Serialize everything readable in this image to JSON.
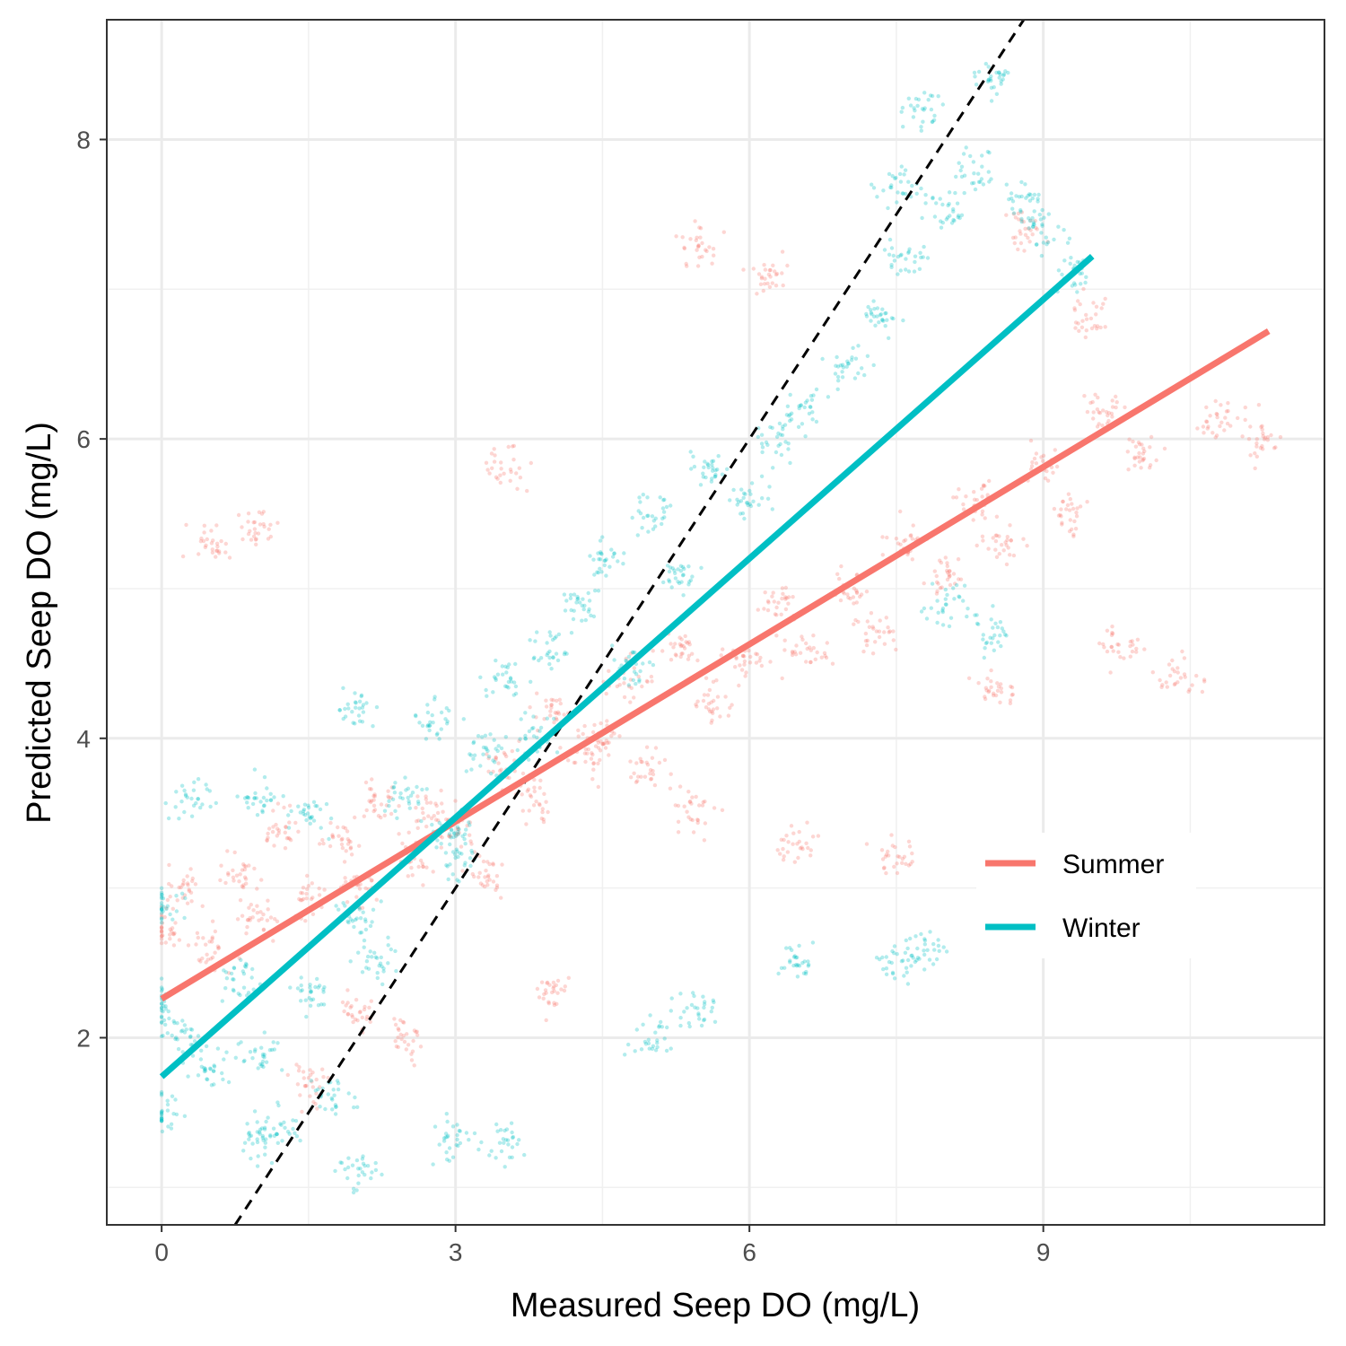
{
  "chart_data": {
    "type": "scatter",
    "xlabel": "Measured Seep DO (mg/L)",
    "ylabel": "Predicted Seep DO (mg/L)",
    "xlim": [
      -0.56,
      11.87
    ],
    "ylim": [
      0.75,
      8.8
    ],
    "x_ticks": [
      0,
      3,
      6,
      9
    ],
    "x_tick_labels": [
      "0",
      "3",
      "6",
      "9"
    ],
    "y_ticks": [
      2,
      4,
      6,
      8
    ],
    "y_tick_labels": [
      "2",
      "4",
      "6",
      "8"
    ],
    "grid": true,
    "legend_position": "inside-bottom-right",
    "series": [
      {
        "name": "Summer",
        "color": "#F8766D",
        "fit_line": {
          "x": [
            0,
            11.3
          ],
          "y": [
            2.26,
            6.72
          ]
        },
        "points_sample": [
          [
            0.0,
            2.7
          ],
          [
            0.2,
            3.0
          ],
          [
            0.5,
            2.6
          ],
          [
            0.8,
            3.1
          ],
          [
            1.0,
            2.8
          ],
          [
            1.2,
            3.4
          ],
          [
            1.5,
            2.9
          ],
          [
            1.8,
            3.3
          ],
          [
            2.0,
            3.0
          ],
          [
            2.2,
            3.6
          ],
          [
            2.5,
            3.2
          ],
          [
            2.8,
            3.5
          ],
          [
            3.0,
            3.4
          ],
          [
            3.3,
            3.1
          ],
          [
            3.5,
            3.8
          ],
          [
            3.8,
            3.6
          ],
          [
            4.0,
            4.2
          ],
          [
            4.3,
            3.9
          ],
          [
            4.5,
            4.0
          ],
          [
            4.8,
            4.4
          ],
          [
            5.0,
            3.8
          ],
          [
            5.3,
            4.6
          ],
          [
            5.6,
            4.2
          ],
          [
            6.0,
            4.5
          ],
          [
            6.3,
            4.9
          ],
          [
            6.6,
            4.6
          ],
          [
            7.0,
            5.0
          ],
          [
            7.3,
            4.7
          ],
          [
            7.6,
            5.3
          ],
          [
            8.0,
            5.1
          ],
          [
            8.3,
            5.6
          ],
          [
            8.6,
            5.3
          ],
          [
            9.0,
            5.8
          ],
          [
            9.3,
            5.5
          ],
          [
            9.6,
            6.2
          ],
          [
            10.0,
            5.9
          ],
          [
            10.4,
            4.4
          ],
          [
            10.8,
            6.1
          ],
          [
            11.2,
            6.0
          ],
          [
            0.5,
            5.3
          ],
          [
            1.0,
            5.4
          ],
          [
            3.5,
            5.8
          ],
          [
            5.5,
            7.3
          ],
          [
            6.2,
            7.1
          ],
          [
            8.8,
            7.4
          ],
          [
            9.5,
            6.8
          ],
          [
            1.5,
            1.7
          ],
          [
            2.0,
            2.2
          ],
          [
            2.5,
            2.0
          ],
          [
            4.0,
            2.3
          ],
          [
            5.5,
            3.5
          ],
          [
            6.5,
            3.3
          ],
          [
            7.5,
            3.2
          ],
          [
            8.5,
            4.3
          ],
          [
            9.8,
            4.6
          ]
        ]
      },
      {
        "name": "Winter",
        "color": "#00BFC4",
        "fit_line": {
          "x": [
            0,
            9.5
          ],
          "y": [
            1.74,
            7.22
          ]
        },
        "points_sample": [
          [
            0.0,
            2.2
          ],
          [
            0.0,
            2.9
          ],
          [
            0.0,
            1.5
          ],
          [
            0.2,
            2.0
          ],
          [
            0.5,
            1.8
          ],
          [
            0.8,
            2.4
          ],
          [
            1.0,
            1.9
          ],
          [
            1.2,
            1.4
          ],
          [
            1.5,
            2.3
          ],
          [
            1.8,
            1.6
          ],
          [
            2.0,
            2.8
          ],
          [
            2.2,
            2.5
          ],
          [
            2.5,
            3.6
          ],
          [
            2.8,
            4.1
          ],
          [
            3.0,
            3.2
          ],
          [
            3.3,
            3.9
          ],
          [
            3.5,
            4.4
          ],
          [
            3.8,
            4.0
          ],
          [
            4.0,
            4.6
          ],
          [
            4.3,
            4.9
          ],
          [
            4.5,
            5.2
          ],
          [
            4.8,
            4.5
          ],
          [
            5.0,
            5.5
          ],
          [
            5.3,
            5.1
          ],
          [
            5.6,
            5.8
          ],
          [
            6.0,
            5.6
          ],
          [
            6.3,
            6.0
          ],
          [
            6.6,
            6.2
          ],
          [
            7.0,
            6.5
          ],
          [
            7.3,
            6.8
          ],
          [
            7.6,
            7.2
          ],
          [
            8.0,
            7.5
          ],
          [
            8.3,
            7.8
          ],
          [
            8.5,
            8.4
          ],
          [
            8.8,
            7.6
          ],
          [
            9.0,
            7.4
          ],
          [
            9.3,
            7.1
          ],
          [
            7.8,
            8.2
          ],
          [
            7.5,
            7.7
          ],
          [
            1.5,
            3.5
          ],
          [
            2.0,
            4.2
          ],
          [
            3.0,
            3.4
          ],
          [
            1.0,
            3.6
          ],
          [
            0.3,
            3.6
          ],
          [
            1.0,
            1.3
          ],
          [
            2.0,
            1.1
          ],
          [
            3.0,
            1.3
          ],
          [
            3.5,
            1.3
          ],
          [
            5.0,
            2.0
          ],
          [
            5.5,
            2.2
          ],
          [
            6.5,
            2.5
          ],
          [
            7.5,
            2.5
          ],
          [
            7.8,
            2.6
          ],
          [
            8.0,
            4.9
          ],
          [
            8.5,
            4.7
          ]
        ]
      }
    ],
    "reference_line": {
      "style": "dashed",
      "color": "#000000",
      "x": [
        0.75,
        8.8
      ],
      "y": [
        0.75,
        8.8
      ]
    }
  }
}
